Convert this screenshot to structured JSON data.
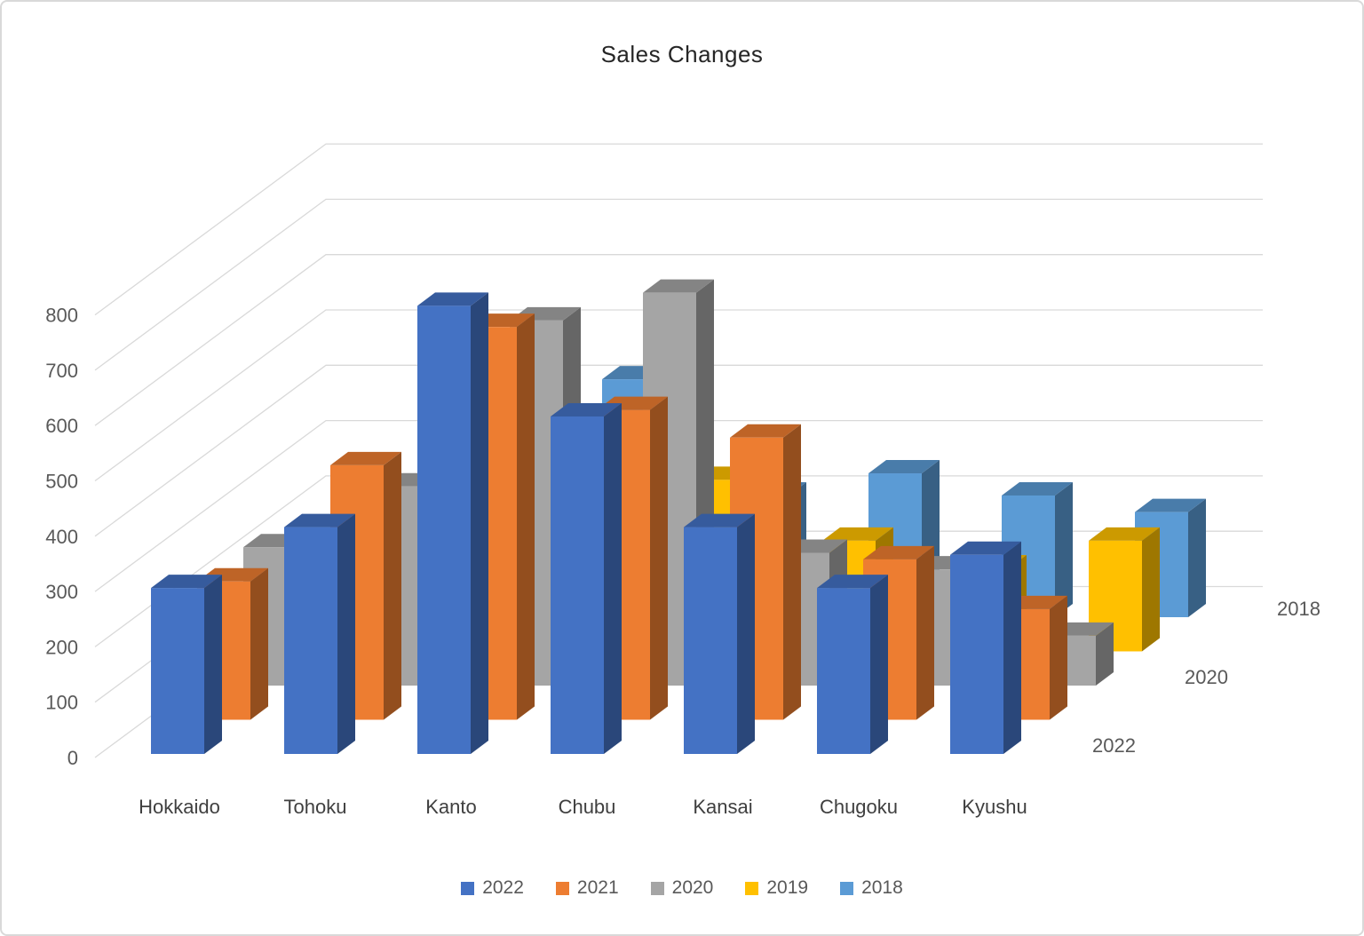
{
  "title": "Sales Changes",
  "chart_data": {
    "type": "bar",
    "subtype": "3d-column",
    "title": "Sales Changes",
    "categories": [
      "Hokkaido",
      "Tohoku",
      "Kanto",
      "Chubu",
      "Kansai",
      "Chugoku",
      "Kyushu"
    ],
    "series": [
      {
        "name": "2022",
        "color": "#4472C4",
        "values": [
          300,
          410,
          810,
          610,
          410,
          300,
          360
        ]
      },
      {
        "name": "2021",
        "color": "#ED7D31",
        "values": [
          250,
          460,
          710,
          560,
          510,
          290,
          200
        ]
      },
      {
        "name": "2020",
        "color": "#A5A5A5",
        "values": [
          250,
          360,
          660,
          710,
          240,
          210,
          90
        ]
      },
      {
        "name": "2019",
        "color": "#FFC000",
        "values": [
          150,
          300,
          350,
          310,
          200,
          150,
          200
        ]
      },
      {
        "name": "2018",
        "color": "#5B9BD5",
        "values": [
          150,
          350,
          430,
          220,
          260,
          220,
          190
        ]
      }
    ],
    "value_axis": {
      "min": 0,
      "max": 800,
      "step": 100,
      "tick_labels": [
        "0",
        "100",
        "200",
        "300",
        "400",
        "500",
        "600",
        "700",
        "800"
      ]
    },
    "depth_axis_labels": [
      "2022",
      "2020",
      "2018"
    ],
    "legend": {
      "position": "bottom",
      "entries": [
        "2022",
        "2021",
        "2020",
        "2019",
        "2018"
      ]
    },
    "grid": true,
    "ylim": [
      0,
      800
    ]
  },
  "colors": {
    "gridline": "#D9D9D9",
    "axis_text": "#595959",
    "category_text": "#3F3F3F",
    "depth_text": "#595959",
    "title_text": "#262626",
    "background": "#FFFFFF",
    "border": "#D9D9D9"
  }
}
